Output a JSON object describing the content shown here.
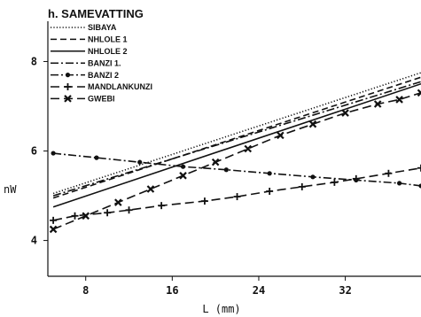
{
  "chart_data": {
    "type": "line",
    "title": "h. SAMEVATTING",
    "xlabel": "L (mm)",
    "ylabel": "nW",
    "xlim": [
      4.5,
      39
    ],
    "ylim": [
      3.2,
      8.9
    ],
    "xticks": [
      8,
      16,
      24,
      32
    ],
    "yticks": [
      4,
      6,
      8
    ],
    "grid": false,
    "legend_position": "top-left",
    "series": [
      {
        "name": "SIBAYA",
        "style": "dotted",
        "marker": "none",
        "points": [
          [
            5,
            5.05
          ],
          [
            39,
            7.75
          ]
        ]
      },
      {
        "name": "NHLOLE 1",
        "style": "dashed",
        "marker": "none",
        "points": [
          [
            5,
            4.95
          ],
          [
            39,
            7.65
          ]
        ]
      },
      {
        "name": "NHLOLE 2",
        "style": "solid",
        "marker": "none",
        "points": [
          [
            5,
            4.75
          ],
          [
            39,
            7.5
          ]
        ]
      },
      {
        "name": "BANZI 1.",
        "style": "dash-dot",
        "marker": "none",
        "points": [
          [
            5,
            5.0
          ],
          [
            39,
            7.55
          ]
        ]
      },
      {
        "name": "BANZI 2",
        "style": "dash-dot",
        "marker": "dot",
        "points": [
          [
            5,
            5.95
          ],
          [
            9,
            5.85
          ],
          [
            13,
            5.75
          ],
          [
            17,
            5.65
          ],
          [
            21,
            5.58
          ],
          [
            25,
            5.5
          ],
          [
            29,
            5.42
          ],
          [
            33,
            5.35
          ],
          [
            37,
            5.28
          ],
          [
            39,
            5.22
          ]
        ]
      },
      {
        "name": "MANDLANKUNZI",
        "style": "long-dash",
        "marker": "plus",
        "points": [
          [
            5,
            4.45
          ],
          [
            7,
            4.55
          ],
          [
            10,
            4.62
          ],
          [
            12,
            4.68
          ],
          [
            15,
            4.78
          ],
          [
            19,
            4.88
          ],
          [
            22,
            4.98
          ],
          [
            25,
            5.1
          ],
          [
            28,
            5.2
          ],
          [
            31,
            5.3
          ],
          [
            33,
            5.38
          ],
          [
            36,
            5.5
          ],
          [
            39,
            5.62
          ]
        ]
      },
      {
        "name": "GWEBI",
        "style": "long-dash",
        "marker": "cross",
        "points": [
          [
            5,
            4.25
          ],
          [
            8,
            4.55
          ],
          [
            11,
            4.85
          ],
          [
            14,
            5.15
          ],
          [
            17,
            5.45
          ],
          [
            20,
            5.75
          ],
          [
            23,
            6.05
          ],
          [
            26,
            6.35
          ],
          [
            29,
            6.6
          ],
          [
            32,
            6.85
          ],
          [
            35,
            7.05
          ],
          [
            37,
            7.15
          ],
          [
            39,
            7.3
          ]
        ]
      }
    ]
  }
}
